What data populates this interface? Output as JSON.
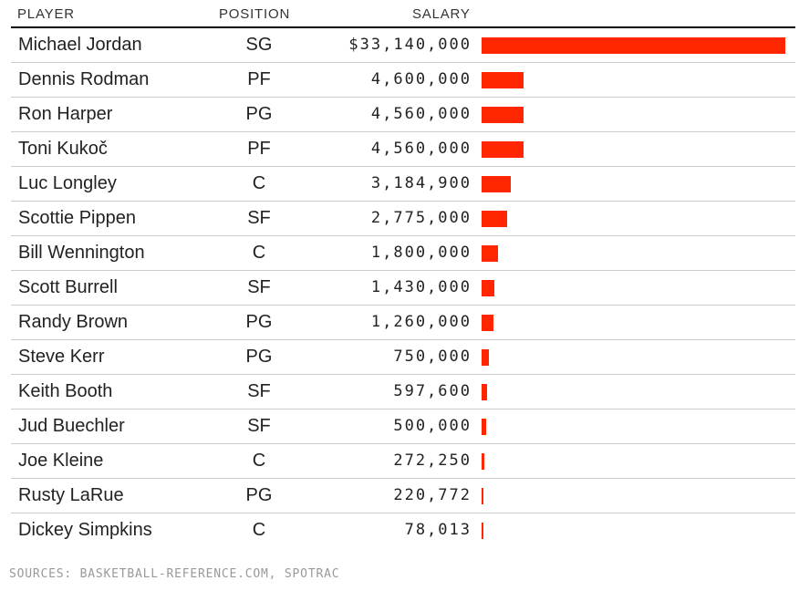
{
  "colors": {
    "bar": "#ff2600"
  },
  "chart_data": {
    "type": "table",
    "columns": [
      "PLAYER",
      "POSITION",
      "SALARY"
    ],
    "rows": [
      {
        "player": "Michael Jordan",
        "position": "SG",
        "salary_label": "$33,140,000",
        "salary": 33140000
      },
      {
        "player": "Dennis Rodman",
        "position": "PF",
        "salary_label": "4,600,000",
        "salary": 4600000
      },
      {
        "player": "Ron Harper",
        "position": "PG",
        "salary_label": "4,560,000",
        "salary": 4560000
      },
      {
        "player": "Toni Kukoč",
        "position": "PF",
        "salary_label": "4,560,000",
        "salary": 4560000
      },
      {
        "player": "Luc Longley",
        "position": "C",
        "salary_label": "3,184,900",
        "salary": 3184900
      },
      {
        "player": "Scottie Pippen",
        "position": "SF",
        "salary_label": "2,775,000",
        "salary": 2775000
      },
      {
        "player": "Bill Wennington",
        "position": "C",
        "salary_label": "1,800,000",
        "salary": 1800000
      },
      {
        "player": "Scott Burrell",
        "position": "SF",
        "salary_label": "1,430,000",
        "salary": 1430000
      },
      {
        "player": "Randy Brown",
        "position": "PG",
        "salary_label": "1,260,000",
        "salary": 1260000
      },
      {
        "player": "Steve Kerr",
        "position": "PG",
        "salary_label": "750,000",
        "salary": 750000
      },
      {
        "player": "Keith Booth",
        "position": "SF",
        "salary_label": "597,600",
        "salary": 597600
      },
      {
        "player": "Jud Buechler",
        "position": "SF",
        "salary_label": "500,000",
        "salary": 500000
      },
      {
        "player": "Joe Kleine",
        "position": "C",
        "salary_label": "272,250",
        "salary": 272250
      },
      {
        "player": "Rusty LaRue",
        "position": "PG",
        "salary_label": "220,772",
        "salary": 220772
      },
      {
        "player": "Dickey Simpkins",
        "position": "C",
        "salary_label": "78,013",
        "salary": 78013
      }
    ],
    "source": "SOURCES: BASKETBALL-REFERENCE.COM, SPOTRAC"
  }
}
